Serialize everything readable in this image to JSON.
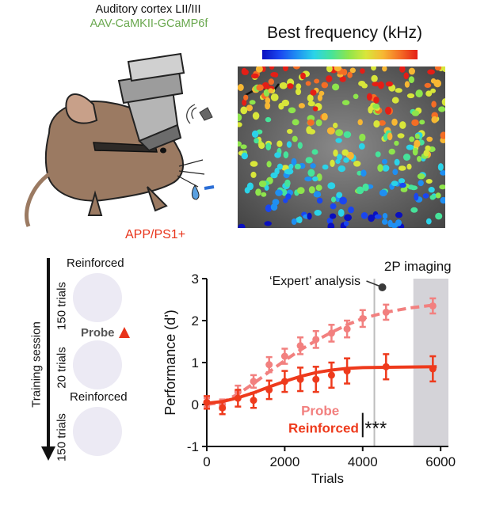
{
  "header": {
    "region": "Auditory cortex LII/III",
    "virus": "AAV-CaMKII-GCaMP6f",
    "genotype": "APP/PS1+"
  },
  "imaging": {
    "title": "Best frequency (kHz)",
    "colorbar_colors": [
      "#0a0fbf",
      "#1a46f0",
      "#1f8ff2",
      "#2bd3e8",
      "#46e39a",
      "#8ee54c",
      "#d8e63a",
      "#f7b733",
      "#f46d25",
      "#e41e16"
    ]
  },
  "training": {
    "axis_label": "Training session",
    "blocks": [
      {
        "name": "Reinforced",
        "trials": "150 trials"
      },
      {
        "name": "Probe",
        "trials": "20 trials"
      },
      {
        "name": "Reinforced",
        "trials": "150 trials"
      }
    ]
  },
  "chart_data": {
    "type": "line",
    "xlabel": "Trials",
    "ylabel": "Performance (d')",
    "xlim": [
      0,
      6200
    ],
    "ylim": [
      -1,
      3
    ],
    "xticks": [
      "0",
      "2000",
      "4000",
      "6000"
    ],
    "yticks": [
      "-1",
      "0",
      "1",
      "2",
      "3"
    ],
    "annotations": {
      "expert": "‘Expert’ analysis",
      "imaging": "2P imaging",
      "significance": "***"
    },
    "expert_line_x": 4300,
    "imaging_band_x": [
      5300,
      6200
    ],
    "series": [
      {
        "name": "Probe",
        "color": "#f2807f",
        "style": "dashed",
        "points": [
          {
            "x": 0,
            "y": 0.05,
            "err": 0.1
          },
          {
            "x": 400,
            "y": 0.0,
            "err": 0.12
          },
          {
            "x": 800,
            "y": 0.3,
            "err": 0.15
          },
          {
            "x": 1200,
            "y": 0.55,
            "err": 0.15
          },
          {
            "x": 1600,
            "y": 0.95,
            "err": 0.18
          },
          {
            "x": 2000,
            "y": 1.15,
            "err": 0.18
          },
          {
            "x": 2400,
            "y": 1.4,
            "err": 0.2
          },
          {
            "x": 2800,
            "y": 1.55,
            "err": 0.2
          },
          {
            "x": 3200,
            "y": 1.7,
            "err": 0.2
          },
          {
            "x": 3600,
            "y": 1.8,
            "err": 0.2
          },
          {
            "x": 4000,
            "y": 2.05,
            "err": 0.2
          },
          {
            "x": 4600,
            "y": 2.2,
            "err": 0.18
          },
          {
            "x": 5800,
            "y": 2.35,
            "err": 0.18
          }
        ],
        "fit": [
          [
            0,
            0.0
          ],
          [
            400,
            0.05
          ],
          [
            800,
            0.25
          ],
          [
            1200,
            0.5
          ],
          [
            1600,
            0.78
          ],
          [
            2000,
            1.05
          ],
          [
            2400,
            1.3
          ],
          [
            2800,
            1.52
          ],
          [
            3200,
            1.72
          ],
          [
            3600,
            1.9
          ],
          [
            4000,
            2.05
          ],
          [
            4600,
            2.2
          ],
          [
            5200,
            2.3
          ],
          [
            5900,
            2.38
          ]
        ]
      },
      {
        "name": "Reinforced",
        "color": "#ee3a1c",
        "style": "solid",
        "points": [
          {
            "x": 0,
            "y": 0.05,
            "err": 0.15
          },
          {
            "x": 400,
            "y": -0.08,
            "err": 0.15
          },
          {
            "x": 800,
            "y": 0.15,
            "err": 0.2
          },
          {
            "x": 1200,
            "y": 0.1,
            "err": 0.18
          },
          {
            "x": 1600,
            "y": 0.35,
            "err": 0.22
          },
          {
            "x": 2000,
            "y": 0.55,
            "err": 0.25
          },
          {
            "x": 2400,
            "y": 0.6,
            "err": 0.28
          },
          {
            "x": 2800,
            "y": 0.6,
            "err": 0.3
          },
          {
            "x": 3200,
            "y": 0.7,
            "err": 0.3
          },
          {
            "x": 3600,
            "y": 0.8,
            "err": 0.3
          },
          {
            "x": 4600,
            "y": 0.9,
            "err": 0.3
          },
          {
            "x": 5800,
            "y": 0.85,
            "err": 0.3
          }
        ],
        "fit": [
          [
            0,
            0.03
          ],
          [
            400,
            0.07
          ],
          [
            800,
            0.16
          ],
          [
            1200,
            0.28
          ],
          [
            1600,
            0.42
          ],
          [
            2000,
            0.55
          ],
          [
            2400,
            0.67
          ],
          [
            2800,
            0.76
          ],
          [
            3200,
            0.82
          ],
          [
            3600,
            0.86
          ],
          [
            4000,
            0.88
          ],
          [
            5000,
            0.89
          ],
          [
            5900,
            0.9
          ]
        ]
      }
    ]
  }
}
